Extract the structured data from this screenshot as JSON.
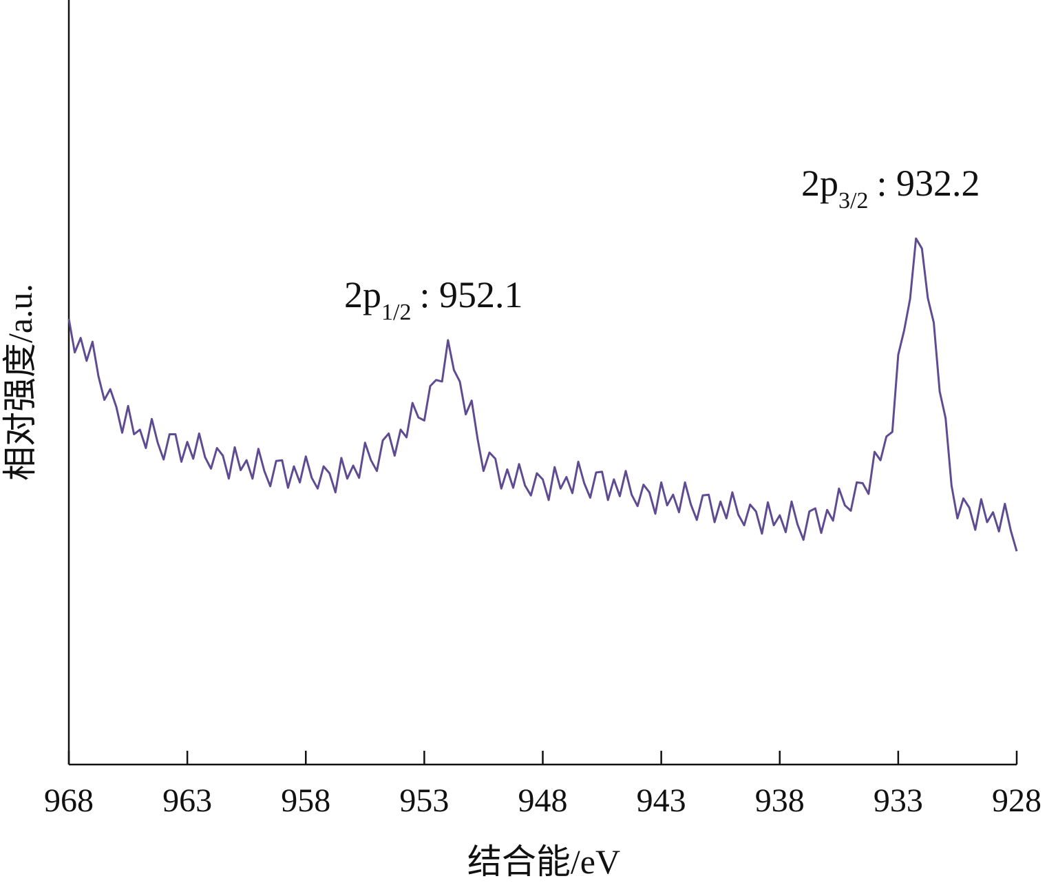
{
  "chart_data": {
    "type": "line",
    "xlabel": "结合能/eV",
    "ylabel": "相对强度/a.u.",
    "xlim": [
      968,
      928
    ],
    "xticks": [
      968,
      963,
      958,
      953,
      948,
      943,
      938,
      933,
      928
    ],
    "ylim": [
      0,
      100
    ],
    "color": "#5e4b91",
    "annotations": [
      {
        "label": "2p",
        "subscript": "1/2",
        "text": ": 952.1"
      },
      {
        "label": "2p",
        "subscript": "3/2",
        "text": ": 932.2"
      }
    ],
    "x": [
      968,
      967.75,
      967.5,
      967.25,
      967,
      966.75,
      966.5,
      966.25,
      966,
      965.75,
      965.5,
      965.25,
      965,
      964.75,
      964.5,
      964.25,
      964,
      963.75,
      963.5,
      963.25,
      963,
      962.75,
      962.5,
      962.25,
      962,
      961.75,
      961.5,
      961.25,
      961,
      960.75,
      960.5,
      960.25,
      960,
      959.75,
      959.5,
      959.25,
      959,
      958.75,
      958.5,
      958.25,
      958,
      957.75,
      957.5,
      957.25,
      957,
      956.75,
      956.5,
      956.25,
      956,
      955.75,
      955.5,
      955.25,
      955,
      954.75,
      954.5,
      954.25,
      954,
      953.75,
      953.5,
      953.25,
      953,
      952.75,
      952.5,
      952.25,
      952,
      951.75,
      951.5,
      951.25,
      951,
      950.75,
      950.5,
      950.25,
      950,
      949.75,
      949.5,
      949.25,
      949,
      948.75,
      948.5,
      948.25,
      948,
      947.75,
      947.5,
      947.25,
      947,
      946.75,
      946.5,
      946.25,
      946,
      945.75,
      945.5,
      945.25,
      945,
      944.75,
      944.5,
      944.25,
      944,
      943.75,
      943.5,
      943.25,
      943,
      942.75,
      942.5,
      942.25,
      942,
      941.75,
      941.5,
      941.25,
      941,
      940.75,
      940.5,
      940.25,
      940,
      939.75,
      939.5,
      939.25,
      939,
      938.75,
      938.5,
      938.25,
      938,
      937.75,
      937.5,
      937.25,
      937,
      936.75,
      936.5,
      936.25,
      936,
      935.75,
      935.5,
      935.25,
      935,
      934.75,
      934.5,
      934.25,
      934,
      933.75,
      933.5,
      933.25,
      933,
      932.75,
      932.5,
      932.25,
      932,
      931.75,
      931.5,
      931.25,
      931,
      930.75,
      930.5,
      930.25,
      930,
      929.75,
      929.5,
      929.25,
      929,
      928.75,
      928.5,
      928.25,
      928
    ],
    "values": [
      58.3,
      53.9,
      55.8,
      52.8,
      55.3,
      50.8,
      47.7,
      49.1,
      46.8,
      43.4,
      46.9,
      43.2,
      43.8,
      41.4,
      45.2,
      42.1,
      39.9,
      43.2,
      43.2,
      39.6,
      42.2,
      40.0,
      43.3,
      40.2,
      38.7,
      41.4,
      40.4,
      37.4,
      41.5,
      38.5,
      39.8,
      37.4,
      41.3,
      38.4,
      36.4,
      39.7,
      39.8,
      36.2,
      39.0,
      36.9,
      40.3,
      37.5,
      36.1,
      39.0,
      38.1,
      35.6,
      40.1,
      37.4,
      39.1,
      37.5,
      42.1,
      39.8,
      38.4,
      42.4,
      43.3,
      40.4,
      43.8,
      42.8,
      47.3,
      45.4,
      45.0,
      49.5,
      50.3,
      50.1,
      55.5,
      51.6,
      50.1,
      45.8,
      47.6,
      42.6,
      38.4,
      40.8,
      40.0,
      36.1,
      38.6,
      36.2,
      39.3,
      36.5,
      35.2,
      38.1,
      37.3,
      34.6,
      38.9,
      36.1,
      37.6,
      35.5,
      39.6,
      36.8,
      34.9,
      38.2,
      38.3,
      34.6,
      37.3,
      35.1,
      38.4,
      35.3,
      33.8,
      36.6,
      35.6,
      32.8,
      36.9,
      33.9,
      35.3,
      33.0,
      36.9,
      34.0,
      32.0,
      35.2,
      35.3,
      31.7,
      34.4,
      32.2,
      35.6,
      32.7,
      31.3,
      34.0,
      33.1,
      30.2,
      34.3,
      31.3,
      32.6,
      30.4,
      34.4,
      31.4,
      29.4,
      33.1,
      33.5,
      30.3,
      33.3,
      31.9,
      36.1,
      33.9,
      33.2,
      36.9,
      36.8,
      35.4,
      40.9,
      39.8,
      42.9,
      43.5,
      53.6,
      56.8,
      60.9,
      68.8,
      67.5,
      61.0,
      57.8,
      48.8,
      45.3,
      36.5,
      32.2,
      34.8,
      33.6,
      30.7,
      34.7,
      31.7,
      33.0,
      30.5,
      34.1,
      30.6,
      27.9
    ]
  }
}
